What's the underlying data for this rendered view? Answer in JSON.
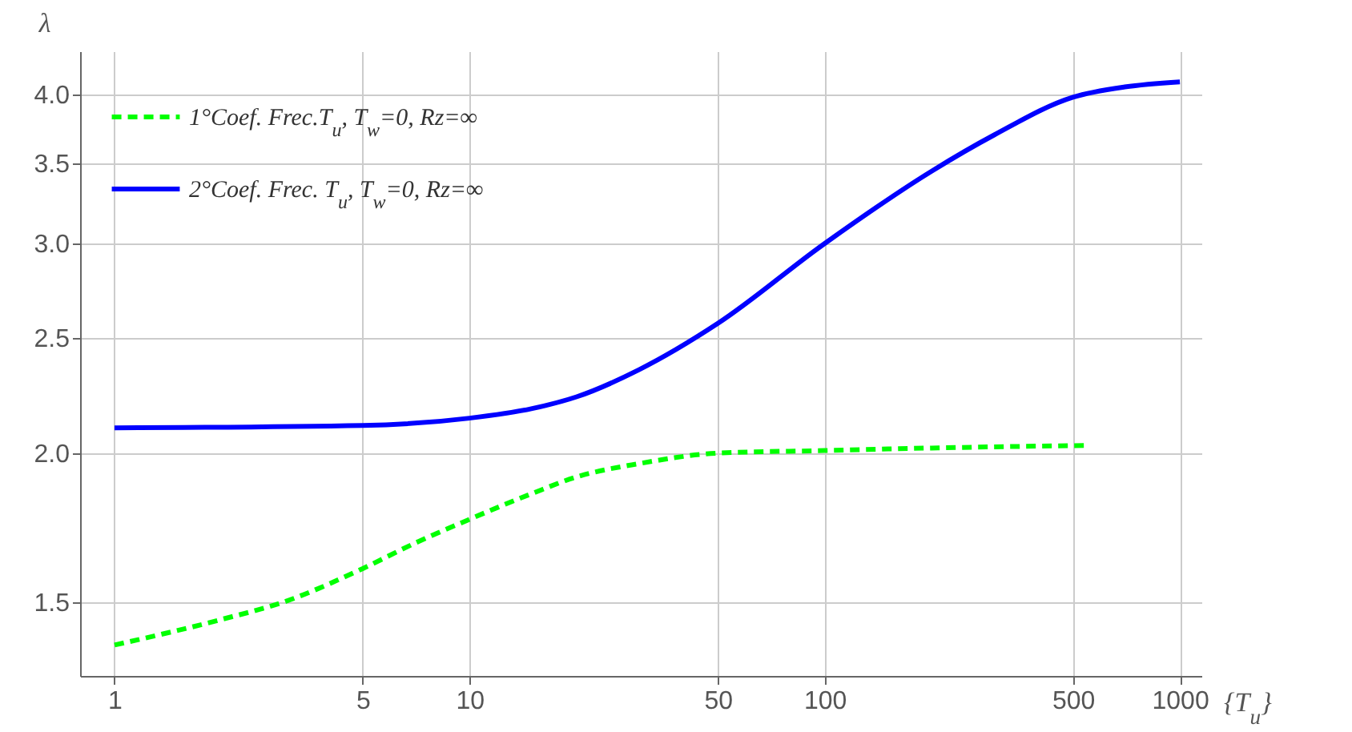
{
  "chart_data": {
    "type": "line",
    "xlabel": "{T$_{u}$}",
    "ylabel": "λ",
    "log": "xy",
    "grid": true,
    "legend": "top left",
    "xlim": [
      0.8,
      1150
    ],
    "xticks": [
      1,
      5,
      10,
      50,
      100,
      500,
      1000
    ],
    "ylim": [
      1.3,
      4.35
    ],
    "yticks": [
      1.5,
      {
        "value": 2,
        "label": "2.0"
      },
      2.5,
      {
        "value": 3,
        "label": "3.0"
      },
      3.5,
      {
        "value": 4,
        "label": "4.0"
      }
    ],
    "series": [
      {
        "name": "1°Coef. Frec.T$_{u}$, T$_{w}$=0, Rz=∞",
        "color": "#00ff00",
        "line_style": "dashed",
        "x": [
          1,
          2,
          3,
          5,
          7,
          10,
          15,
          20,
          30,
          50,
          100,
          200,
          550
        ],
        "values": [
          1.38,
          1.45,
          1.5,
          1.6,
          1.68,
          1.76,
          1.85,
          1.91,
          1.96,
          2.0,
          2.01,
          2.02,
          2.03
        ]
      },
      {
        "name": "2°Coef. Frec. T$_{u}$, T$_{w}$=0, Rz=∞",
        "color": "#0000ff",
        "line_style": "solid",
        "x": [
          1,
          5,
          10,
          15,
          20,
          30,
          50,
          100,
          200,
          300,
          500,
          700,
          1000
        ],
        "values": [
          2.1,
          2.11,
          2.14,
          2.18,
          2.23,
          2.35,
          2.57,
          3.0,
          3.45,
          3.7,
          3.98,
          4.06,
          4.1
        ]
      }
    ]
  }
}
